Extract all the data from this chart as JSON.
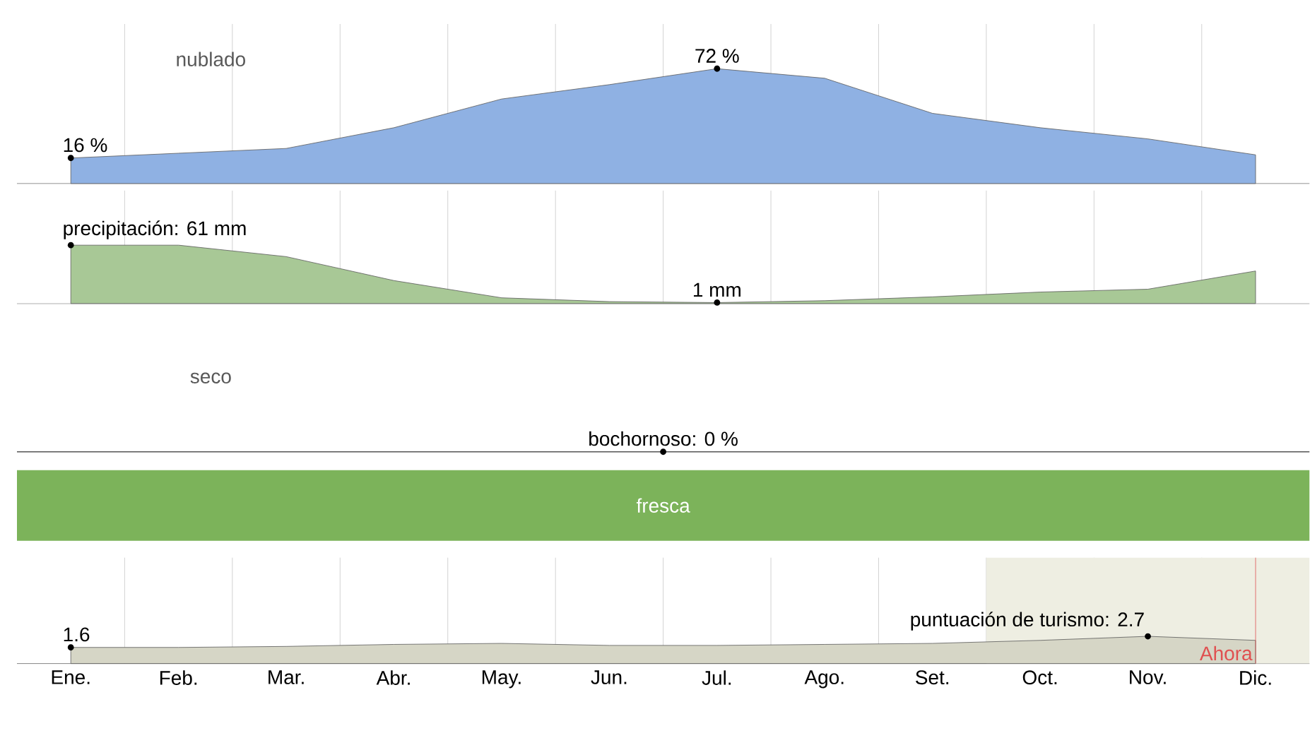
{
  "chart_data": [
    {
      "type": "area",
      "categories": [
        null,
        null,
        null,
        null,
        null,
        null,
        null,
        null,
        null,
        null,
        null,
        null
      ],
      "tick_labels": false,
      "grid": "x",
      "color": "#8fb1e3",
      "annotations": [
        "nublado"
      ],
      "values": [
        16,
        19,
        22,
        35,
        53,
        62,
        72,
        66,
        44,
        35,
        28,
        18
      ],
      "value_labels": [
        "16 %",
        null,
        null,
        null,
        null,
        null,
        "72 %",
        null,
        null,
        null,
        null,
        null
      ]
    },
    {
      "type": "area",
      "categories": [
        null,
        null,
        null,
        null,
        null,
        null,
        null,
        null,
        null,
        null,
        null,
        null
      ],
      "tick_labels": false,
      "grid": "x",
      "color": "#a8c896",
      "values": [
        61,
        61,
        49,
        24,
        6,
        2,
        1,
        3,
        7,
        12,
        15,
        34
      ],
      "value_labels": [
        "precipitación: 61 mm",
        null,
        null,
        null,
        null,
        null,
        "1 mm",
        null,
        null,
        null,
        null,
        null
      ]
    },
    {
      "type": "other",
      "color": "#555555",
      "annotations": [
        "seco",
        "bochornoso: 0 %"
      ]
    },
    {
      "type": "other",
      "color": "#7cb35a",
      "annotations": [
        "fresca"
      ]
    },
    {
      "type": "area",
      "categories": [
        "Ene.",
        "Feb.",
        "Mar.",
        "Abr.",
        "May.",
        "Jun.",
        "Jul.",
        "Ago.",
        "Set.",
        "Oct.",
        "Nov.",
        "Dic."
      ],
      "grid": "x",
      "color": "#d6d6c6",
      "values": [
        1.6,
        1.6,
        1.7,
        1.9,
        2.0,
        1.8,
        1.8,
        1.9,
        2.0,
        2.3,
        2.7,
        2.3
      ],
      "value_labels": [
        "1.6",
        null,
        null,
        null,
        null,
        null,
        null,
        null,
        null,
        null,
        "puntuación de turismo: 2.7",
        null
      ],
      "bands": [
        {
          "axis": "x",
          "from": "Oct.",
          "to": "Dic.",
          "color": "#eeeee2"
        }
      ],
      "ref_lines": [
        {
          "axis": "x",
          "value": "Dic.",
          "label": "Ahora",
          "color": "#e05050"
        }
      ]
    }
  ]
}
